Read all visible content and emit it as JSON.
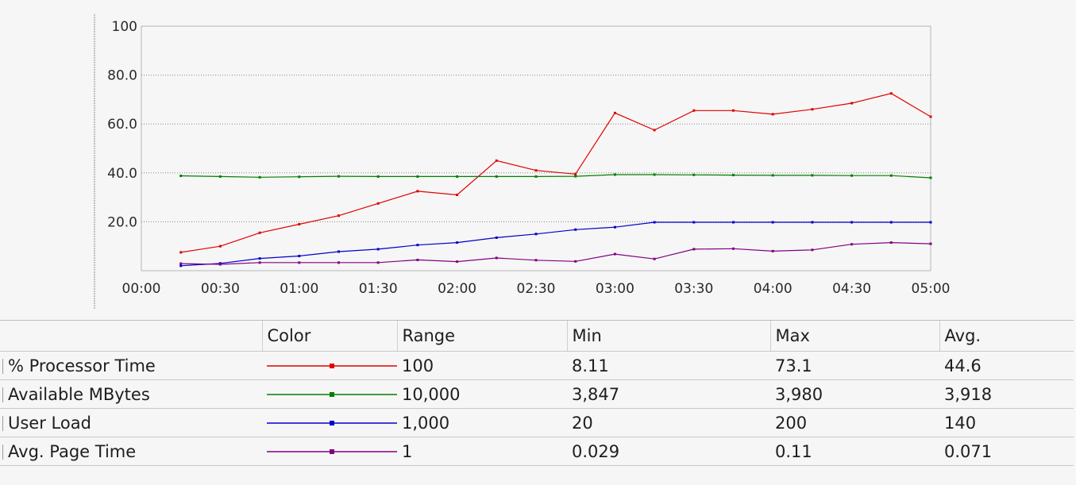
{
  "chart_data": {
    "type": "line",
    "x": [
      "00:15",
      "00:30",
      "00:45",
      "01:00",
      "01:15",
      "01:30",
      "01:45",
      "02:00",
      "02:15",
      "02:30",
      "02:45",
      "03:00",
      "03:15",
      "03:30",
      "03:45",
      "04:00",
      "04:15",
      "04:30",
      "04:45",
      "05:00"
    ],
    "x_ticks": [
      "00:00",
      "00:30",
      "01:00",
      "01:30",
      "02:00",
      "02:30",
      "03:00",
      "03:30",
      "04:00",
      "04:30",
      "05:00"
    ],
    "xlim": [
      "00:00",
      "05:00"
    ],
    "ylim": [
      0,
      100
    ],
    "y_ticks": [
      "20.0",
      "40.0",
      "60.0",
      "80.0",
      "100"
    ],
    "grid": "horizontal dotted",
    "series": [
      {
        "name": "% Processor Time",
        "color": "#e00000",
        "values": [
          7.5,
          10,
          15.5,
          19,
          22.5,
          27.5,
          32.5,
          31,
          45,
          41,
          39.5,
          64.5,
          57.5,
          65.5,
          65.5,
          64,
          66,
          68.5,
          72.5,
          63
        ]
      },
      {
        "name": "Available MBytes",
        "color": "#008000",
        "values": [
          38.8,
          38.5,
          38.2,
          38.4,
          38.6,
          38.5,
          38.5,
          38.5,
          38.5,
          38.5,
          38.6,
          39.3,
          39.3,
          39.2,
          39.1,
          39.0,
          39.0,
          38.9,
          38.9,
          38.0
        ]
      },
      {
        "name": "User Load",
        "color": "#0000cc",
        "values": [
          2,
          3,
          5,
          6,
          7.8,
          8.8,
          10.5,
          11.5,
          13.5,
          15,
          16.8,
          17.8,
          19.8,
          19.8,
          19.8,
          19.8,
          19.8,
          19.8,
          19.8,
          19.8
        ]
      },
      {
        "name": "Avg. Page Time",
        "color": "#800080",
        "values": [
          2.9,
          2.6,
          3.3,
          3.3,
          3.3,
          3.3,
          4.4,
          3.7,
          5.2,
          4.3,
          3.8,
          6.8,
          4.8,
          8.8,
          9,
          8,
          8.5,
          10.8,
          11.5,
          11
        ]
      }
    ]
  },
  "legend": {
    "headers": [
      "",
      "Color",
      "Range",
      "Min",
      "Max",
      "Avg."
    ],
    "rows": [
      {
        "name": "% Processor Time",
        "color": "#e00000",
        "range": "100",
        "min": "8.11",
        "max": "73.1",
        "avg": "44.6"
      },
      {
        "name": "Available MBytes",
        "color": "#008000",
        "range": "10,000",
        "min": "3,847",
        "max": "3,980",
        "avg": "3,918"
      },
      {
        "name": "User Load",
        "color": "#0000cc",
        "range": "1,000",
        "min": "20",
        "max": "200",
        "avg": "140"
      },
      {
        "name": "Avg. Page Time",
        "color": "#800080",
        "range": "1",
        "min": "0.029",
        "max": "0.11",
        "avg": "0.071"
      }
    ]
  }
}
